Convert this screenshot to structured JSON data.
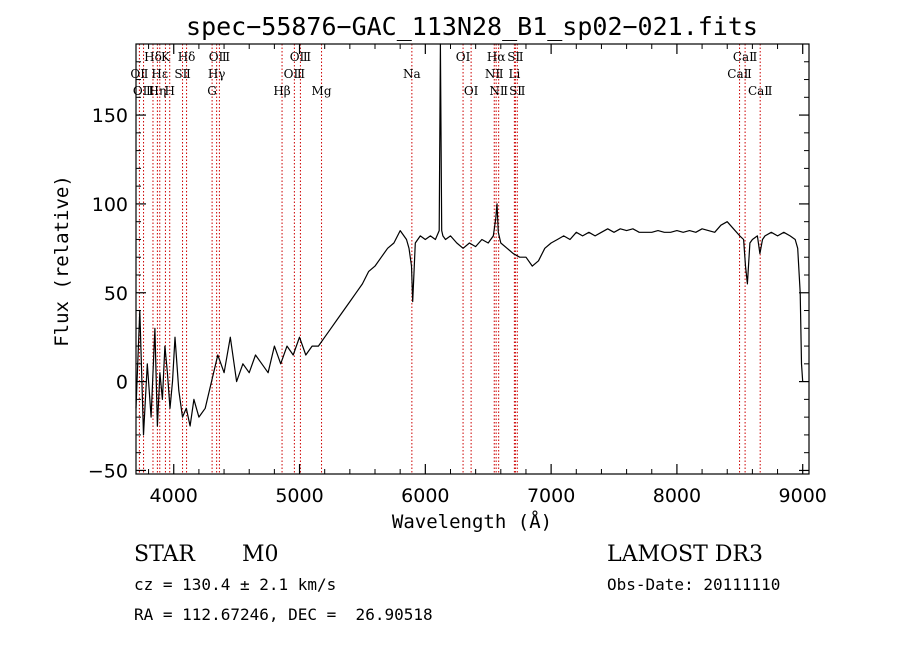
{
  "chart_data": {
    "type": "line",
    "title": "spec−55876−GAC_113N28_B1_sp02−021.fits",
    "xlabel": "Wavelength (Å)",
    "ylabel": "Flux (relative)",
    "xlim": [
      3700,
      9050
    ],
    "ylim": [
      -52,
      190
    ],
    "xticks": [
      4000,
      5000,
      6000,
      7000,
      8000,
      9000
    ],
    "yticks": [
      -50,
      0,
      50,
      100,
      150
    ],
    "spectrum": {
      "name": "flux",
      "x": [
        3700,
        3730,
        3760,
        3790,
        3820,
        3850,
        3870,
        3890,
        3910,
        3930,
        3950,
        3970,
        3990,
        4010,
        4040,
        4070,
        4100,
        4130,
        4160,
        4200,
        4250,
        4300,
        4350,
        4400,
        4450,
        4500,
        4550,
        4600,
        4650,
        4700,
        4750,
        4800,
        4850,
        4900,
        4950,
        5000,
        5050,
        5100,
        5150,
        5200,
        5250,
        5300,
        5350,
        5400,
        5450,
        5500,
        5550,
        5600,
        5650,
        5700,
        5750,
        5800,
        5850,
        5870,
        5890,
        5900,
        5920,
        5960,
        6000,
        6040,
        6080,
        6110,
        6120,
        6130,
        6140,
        6160,
        6200,
        6250,
        6300,
        6350,
        6400,
        6450,
        6500,
        6540,
        6560,
        6570,
        6580,
        6600,
        6650,
        6700,
        6750,
        6800,
        6850,
        6900,
        6950,
        7000,
        7050,
        7100,
        7150,
        7200,
        7250,
        7300,
        7350,
        7400,
        7450,
        7500,
        7550,
        7600,
        7650,
        7700,
        7750,
        7800,
        7850,
        7900,
        7950,
        8000,
        8050,
        8100,
        8150,
        8200,
        8250,
        8300,
        8350,
        8400,
        8450,
        8500,
        8530,
        8545,
        8560,
        8580,
        8600,
        8640,
        8660,
        8680,
        8700,
        8750,
        8800,
        8850,
        8900,
        8940,
        8960,
        8980,
        8990,
        9000
      ],
      "y": [
        -15,
        40,
        -30,
        10,
        -20,
        30,
        -25,
        5,
        -10,
        20,
        5,
        -15,
        0,
        25,
        -5,
        -20,
        -15,
        -25,
        -10,
        -20,
        -15,
        0,
        15,
        5,
        25,
        0,
        10,
        5,
        15,
        10,
        5,
        20,
        10,
        20,
        15,
        25,
        15,
        20,
        20,
        25,
        30,
        35,
        40,
        45,
        50,
        55,
        62,
        65,
        70,
        75,
        78,
        85,
        80,
        75,
        65,
        45,
        78,
        82,
        80,
        82,
        80,
        85,
        190,
        85,
        82,
        80,
        82,
        78,
        75,
        78,
        76,
        80,
        78,
        82,
        92,
        100,
        84,
        78,
        75,
        72,
        70,
        70,
        65,
        68,
        75,
        78,
        80,
        82,
        80,
        84,
        82,
        84,
        82,
        84,
        86,
        84,
        86,
        85,
        86,
        84,
        84,
        84,
        85,
        84,
        84,
        85,
        84,
        85,
        84,
        86,
        85,
        84,
        88,
        90,
        86,
        82,
        80,
        65,
        55,
        78,
        80,
        82,
        72,
        80,
        82,
        84,
        82,
        84,
        82,
        80,
        75,
        50,
        10,
        0
      ]
    },
    "emission_lines": [
      {
        "label": "Hδ",
        "wavelength": 3835,
        "row": 1
      },
      {
        "label": "OⅡ",
        "wavelength": 3727,
        "row": 2
      },
      {
        "label": "OⅢ",
        "wavelength": 3760,
        "row": 3
      },
      {
        "label": "Hε",
        "wavelength": 3889,
        "row": 2
      },
      {
        "label": "Hη",
        "wavelength": 3870,
        "row": 3
      },
      {
        "label": "K",
        "wavelength": 3934,
        "row": 1
      },
      {
        "label": "H",
        "wavelength": 3968,
        "row": 3
      },
      {
        "label": "SⅡ",
        "wavelength": 4070,
        "row": 2
      },
      {
        "label": "Hδ",
        "wavelength": 4102,
        "row": 1
      },
      {
        "label": "OⅢ",
        "wavelength": 4363,
        "row": 1
      },
      {
        "label": "Hγ",
        "wavelength": 4341,
        "row": 2
      },
      {
        "label": "G",
        "wavelength": 4305,
        "row": 3
      },
      {
        "label": "Hβ",
        "wavelength": 4861,
        "row": 3
      },
      {
        "label": "OⅢ",
        "wavelength": 4959,
        "row": 2
      },
      {
        "label": "OⅢ",
        "wavelength": 5007,
        "row": 1
      },
      {
        "label": "Mg",
        "wavelength": 5175,
        "row": 3
      },
      {
        "label": "Na",
        "wavelength": 5893,
        "row": 2
      },
      {
        "label": "OⅠ",
        "wavelength": 6300,
        "row": 1
      },
      {
        "label": "OⅠ",
        "wavelength": 6364,
        "row": 3
      },
      {
        "label": "Hα",
        "wavelength": 6563,
        "row": 1
      },
      {
        "label": "NⅡ",
        "wavelength": 6548,
        "row": 2
      },
      {
        "label": "NⅡ",
        "wavelength": 6583,
        "row": 3
      },
      {
        "label": "SⅡ",
        "wavelength": 6716,
        "row": 1
      },
      {
        "label": "Li",
        "wavelength": 6708,
        "row": 2
      },
      {
        "label": "SⅡ",
        "wavelength": 6731,
        "row": 3
      },
      {
        "label": "CaⅡ",
        "wavelength": 8542,
        "row": 1
      },
      {
        "label": "CaⅡ",
        "wavelength": 8498,
        "row": 2
      },
      {
        "label": "CaⅡ",
        "wavelength": 8662,
        "row": 3
      }
    ]
  },
  "info": {
    "class": "STAR",
    "subclass": "M0",
    "survey": "LAMOST DR3",
    "cz": "cz = 130.4 ± 2.1 km/s",
    "obs_date": "Obs-Date: 20111110",
    "radec": "RA = 112.67246, DEC =  26.90518"
  },
  "colors": {
    "line": "#000000",
    "marker": "#cc0000",
    "background": "#ffffff"
  }
}
